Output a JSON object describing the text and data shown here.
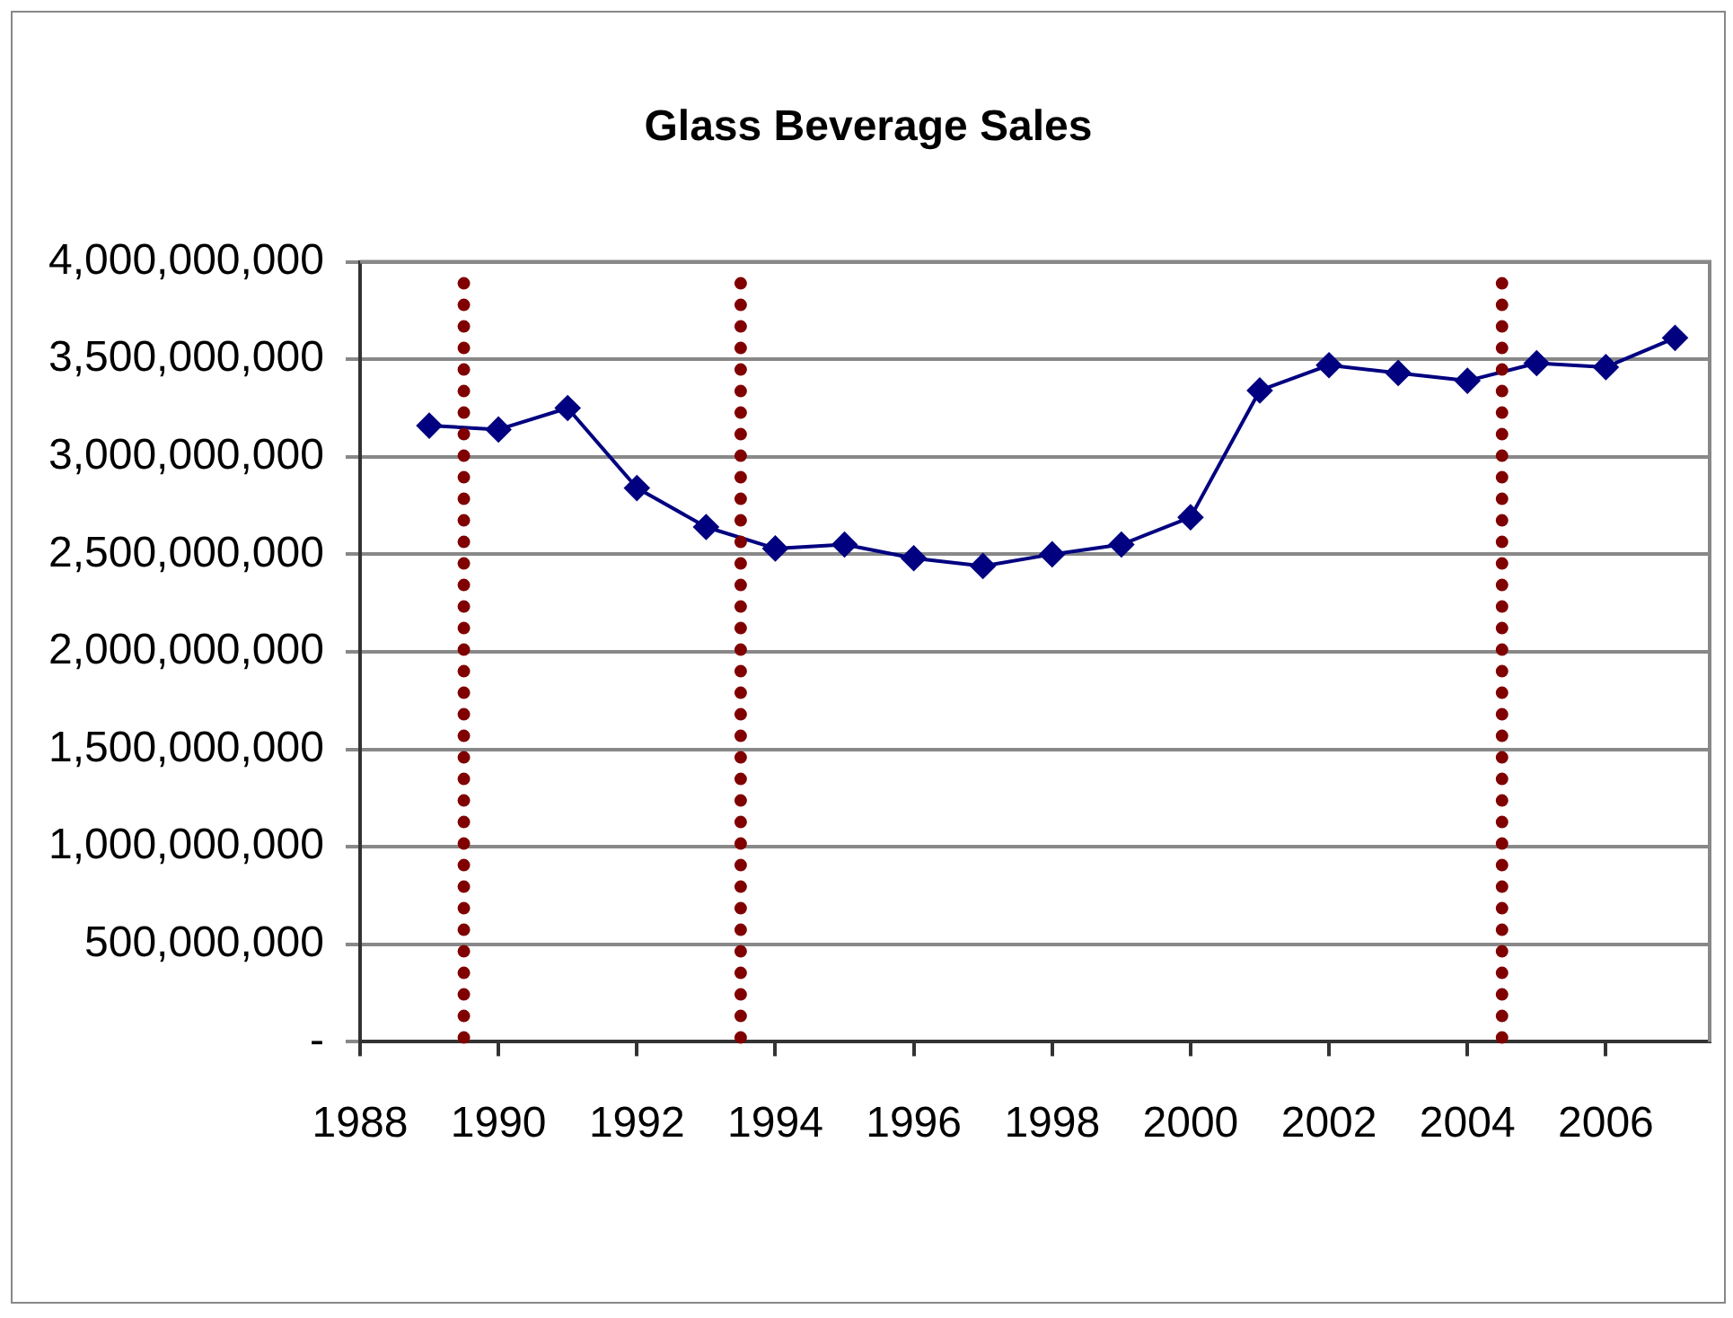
{
  "chart_data": {
    "type": "line",
    "title": "Glass Beverage Sales",
    "x": [
      1989,
      1990,
      1991,
      1992,
      1993,
      1994,
      1995,
      1996,
      1997,
      1998,
      1999,
      2000,
      2001,
      2002,
      2003,
      2004,
      2005,
      2006,
      2007
    ],
    "series": [
      {
        "color": "#000080",
        "values": [
          3160000000,
          3140000000,
          3250000000,
          2840000000,
          2640000000,
          2530000000,
          2550000000,
          2480000000,
          2440000000,
          2500000000,
          2550000000,
          2690000000,
          3340000000,
          3470000000,
          3430000000,
          3390000000,
          3480000000,
          3460000000,
          3610000000
        ]
      }
    ],
    "xlim": [
      1988,
      2007.5
    ],
    "xticks": [
      1988,
      1990,
      1992,
      1994,
      1996,
      1998,
      2000,
      2002,
      2004,
      2006
    ],
    "ylim": [
      0,
      4000000000
    ],
    "yticks": [
      {
        "value": 0,
        "label": "-"
      },
      {
        "value": 500000000,
        "label": "500,000,000"
      },
      {
        "value": 1000000000,
        "label": "1,000,000,000"
      },
      {
        "value": 1500000000,
        "label": "1,500,000,000"
      },
      {
        "value": 2000000000,
        "label": "2,000,000,000"
      },
      {
        "value": 2500000000,
        "label": "2,500,000,000"
      },
      {
        "value": 3000000000,
        "label": "3,000,000,000"
      },
      {
        "value": 3500000000,
        "label": "3,500,000,000"
      },
      {
        "value": 4000000000,
        "label": "4,000,000,000"
      }
    ],
    "ref_lines": [
      {
        "axis": "x",
        "value": 1989.5,
        "color": "#800000",
        "line_style": "dotted"
      },
      {
        "axis": "x",
        "value": 1993.5,
        "color": "#800000",
        "line_style": "dotted"
      },
      {
        "axis": "x",
        "value": 2004.5,
        "color": "#800000",
        "line_style": "dotted"
      }
    ],
    "grid": "y",
    "legend": false,
    "marker": "diamond",
    "line_style": "solid"
  }
}
